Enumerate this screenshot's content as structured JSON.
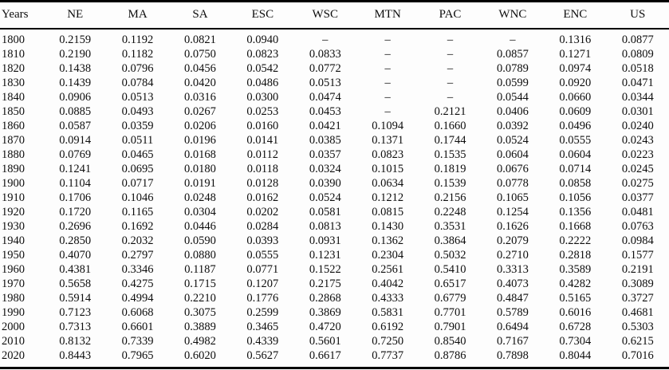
{
  "page": {
    "background": "#fdfdfd",
    "text_color": "#0d0d0d",
    "rule_color": "#000000"
  },
  "chart_data": {
    "type": "table",
    "columns": [
      "Years",
      "NE",
      "MA",
      "SA",
      "ESC",
      "WSC",
      "MTN",
      "PAC",
      "WNC",
      "ENC",
      "US"
    ],
    "missing_value_marker": "–",
    "rows": [
      [
        "1800",
        "0.2159",
        "0.1192",
        "0.0821",
        "0.0940",
        "–",
        "–",
        "–",
        "–",
        "0.1316",
        "0.0877"
      ],
      [
        "1810",
        "0.2190",
        "0.1182",
        "0.0750",
        "0.0823",
        "0.0833",
        "–",
        "–",
        "0.0857",
        "0.1271",
        "0.0809"
      ],
      [
        "1820",
        "0.1438",
        "0.0796",
        "0.0456",
        "0.0542",
        "0.0772",
        "–",
        "–",
        "0.0789",
        "0.0974",
        "0.0518"
      ],
      [
        "1830",
        "0.1439",
        "0.0784",
        "0.0420",
        "0.0486",
        "0.0513",
        "–",
        "–",
        "0.0599",
        "0.0920",
        "0.0471"
      ],
      [
        "1840",
        "0.0906",
        "0.0513",
        "0.0316",
        "0.0300",
        "0.0474",
        "–",
        "–",
        "0.0544",
        "0.0660",
        "0.0344"
      ],
      [
        "1850",
        "0.0885",
        "0.0493",
        "0.0267",
        "0.0253",
        "0.0453",
        "–",
        "0.2121",
        "0.0406",
        "0.0609",
        "0.0301"
      ],
      [
        "1860",
        "0.0587",
        "0.0359",
        "0.0206",
        "0.0160",
        "0.0421",
        "0.1094",
        "0.1660",
        "0.0392",
        "0.0496",
        "0.0240"
      ],
      [
        "1870",
        "0.0914",
        "0.0511",
        "0.0196",
        "0.0141",
        "0.0385",
        "0.1371",
        "0.1744",
        "0.0524",
        "0.0555",
        "0.0243"
      ],
      [
        "1880",
        "0.0769",
        "0.0465",
        "0.0168",
        "0.0112",
        "0.0357",
        "0.0823",
        "0.1535",
        "0.0604",
        "0.0604",
        "0.0223"
      ],
      [
        "1890",
        "0.1241",
        "0.0695",
        "0.0180",
        "0.0118",
        "0.0324",
        "0.1015",
        "0.1819",
        "0.0676",
        "0.0714",
        "0.0245"
      ],
      [
        "1900",
        "0.1104",
        "0.0717",
        "0.0191",
        "0.0128",
        "0.0390",
        "0.0634",
        "0.1539",
        "0.0778",
        "0.0858",
        "0.0275"
      ],
      [
        "1910",
        "0.1706",
        "0.1046",
        "0.0248",
        "0.0162",
        "0.0524",
        "0.1212",
        "0.2156",
        "0.1065",
        "0.1056",
        "0.0377"
      ],
      [
        "1920",
        "0.1720",
        "0.1165",
        "0.0304",
        "0.0202",
        "0.0581",
        "0.0815",
        "0.2248",
        "0.1254",
        "0.1356",
        "0.0481"
      ],
      [
        "1930",
        "0.2696",
        "0.1692",
        "0.0446",
        "0.0284",
        "0.0813",
        "0.1430",
        "0.3531",
        "0.1626",
        "0.1668",
        "0.0763"
      ],
      [
        "1940",
        "0.2850",
        "0.2032",
        "0.0590",
        "0.0393",
        "0.0931",
        "0.1362",
        "0.3864",
        "0.2079",
        "0.2222",
        "0.0984"
      ],
      [
        "1950",
        "0.4070",
        "0.2797",
        "0.0880",
        "0.0555",
        "0.1231",
        "0.2304",
        "0.5032",
        "0.2710",
        "0.2818",
        "0.1577"
      ],
      [
        "1960",
        "0.4381",
        "0.3346",
        "0.1187",
        "0.0771",
        "0.1522",
        "0.2561",
        "0.5410",
        "0.3313",
        "0.3589",
        "0.2191"
      ],
      [
        "1970",
        "0.5658",
        "0.4275",
        "0.1715",
        "0.1207",
        "0.2175",
        "0.4042",
        "0.6517",
        "0.4073",
        "0.4282",
        "0.3089"
      ],
      [
        "1980",
        "0.5914",
        "0.4994",
        "0.2210",
        "0.1776",
        "0.2868",
        "0.4333",
        "0.6779",
        "0.4847",
        "0.5165",
        "0.3727"
      ],
      [
        "1990",
        "0.7123",
        "0.6068",
        "0.3075",
        "0.2599",
        "0.3869",
        "0.5831",
        "0.7701",
        "0.5789",
        "0.6016",
        "0.4681"
      ],
      [
        "2000",
        "0.7313",
        "0.6601",
        "0.3889",
        "0.3465",
        "0.4720",
        "0.6192",
        "0.7901",
        "0.6494",
        "0.6728",
        "0.5303"
      ],
      [
        "2010",
        "0.8132",
        "0.7339",
        "0.4982",
        "0.4339",
        "0.5601",
        "0.7250",
        "0.8540",
        "0.7167",
        "0.7304",
        "0.6215"
      ],
      [
        "2020",
        "0.8443",
        "0.7965",
        "0.6020",
        "0.5627",
        "0.6617",
        "0.7737",
        "0.8786",
        "0.7898",
        "0.8044",
        "0.7016"
      ]
    ]
  }
}
